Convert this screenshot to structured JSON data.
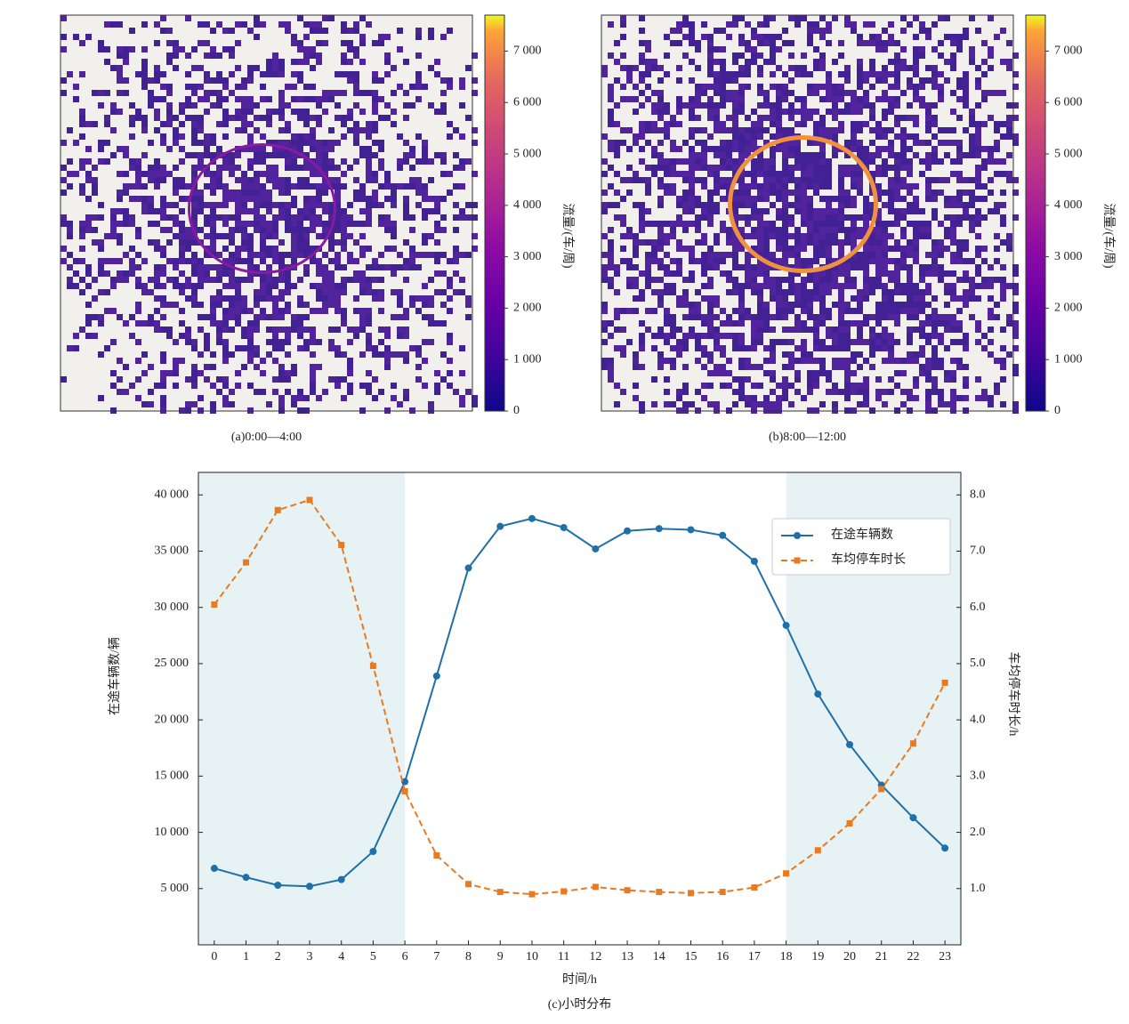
{
  "chart_data": [
    {
      "type": "heatmap",
      "caption": "(a)0:00—4:00",
      "colorbar_label": "流量/(车/周)",
      "colormap": "plasma",
      "clim": [
        0,
        7700
      ],
      "cticks": [
        0,
        {
          "value": 1000,
          "label": "1 000"
        },
        {
          "value": 2000,
          "label": "2 000"
        },
        {
          "value": 3000,
          "label": "3 000"
        },
        {
          "value": 4000,
          "label": "4 000"
        },
        {
          "value": 5000,
          "label": "5 000"
        },
        {
          "value": 6000,
          "label": "6 000"
        },
        {
          "value": 7000,
          "label": "7 000"
        }
      ]
    },
    {
      "type": "heatmap",
      "caption": "(b)8:00—12:00",
      "colorbar_label": "流量/(车/周)",
      "colormap": "plasma",
      "clim": [
        0,
        7700
      ],
      "cticks": [
        0,
        {
          "value": 1000,
          "label": "1 000"
        },
        {
          "value": 2000,
          "label": "2 000"
        },
        {
          "value": 3000,
          "label": "3 000"
        },
        {
          "value": 4000,
          "label": "4 000"
        },
        {
          "value": 5000,
          "label": "5 000"
        },
        {
          "value": 6000,
          "label": "6 000"
        },
        {
          "value": 7000,
          "label": "7 000"
        }
      ]
    },
    {
      "type": "line",
      "caption": "(c)小时分布",
      "xlabel": "时间/h",
      "ylabel": "在途车辆数/辆",
      "y2label": "车均停车时长/h",
      "x": [
        0,
        1,
        2,
        3,
        4,
        5,
        6,
        7,
        8,
        9,
        10,
        11,
        12,
        13,
        14,
        15,
        16,
        17,
        18,
        19,
        20,
        21,
        22,
        23
      ],
      "xlim": [
        -0.5,
        23.5
      ],
      "xticks": [
        0,
        1,
        2,
        3,
        4,
        5,
        6,
        7,
        8,
        9,
        10,
        11,
        12,
        13,
        14,
        15,
        16,
        17,
        18,
        19,
        20,
        21,
        22,
        23
      ],
      "ylim": [
        0,
        42000
      ],
      "yticks": [
        {
          "value": 5000,
          "label": "5 000"
        },
        {
          "value": 10000,
          "label": "10 000"
        },
        {
          "value": 15000,
          "label": "15 000"
        },
        {
          "value": 20000,
          "label": "20 000"
        },
        {
          "value": 25000,
          "label": "25 000"
        },
        {
          "value": 30000,
          "label": "30 000"
        },
        {
          "value": 35000,
          "label": "35 000"
        },
        {
          "value": 40000,
          "label": "40 000"
        }
      ],
      "y2lim": [
        0,
        8.4
      ],
      "y2ticks": [
        {
          "value": 1,
          "label": "1.0"
        },
        {
          "value": 2,
          "label": "2.0"
        },
        {
          "value": 3,
          "label": "3.0"
        },
        {
          "value": 4,
          "label": "4.0"
        },
        {
          "value": 5,
          "label": "5.0"
        },
        {
          "value": 6,
          "label": "6.0"
        },
        {
          "value": 7,
          "label": "7.0"
        },
        {
          "value": 8,
          "label": "8.0"
        }
      ],
      "spans": [
        [
          -0.5,
          6
        ],
        [
          18,
          23.5
        ]
      ],
      "span_color": "#e6f2f3",
      "legend": "upper right",
      "series": [
        {
          "name": "在途车辆数",
          "color": "#1f6fa8",
          "marker": "circle",
          "dashed": false,
          "axis": "y",
          "values": [
            6800,
            6000,
            5300,
            5200,
            5800,
            8300,
            14500,
            23900,
            33500,
            37200,
            37900,
            37100,
            35200,
            36800,
            37000,
            36900,
            36400,
            34100,
            28400,
            22300,
            17800,
            14200,
            11300,
            8600
          ]
        },
        {
          "name": "车均停车时长",
          "color": "#e87b22",
          "marker": "square",
          "dashed": true,
          "axis": "y2",
          "values": [
            6.05,
            6.8,
            7.73,
            7.91,
            7.11,
            4.96,
            2.73,
            1.59,
            1.08,
            0.94,
            0.9,
            0.95,
            1.03,
            0.97,
            0.94,
            0.92,
            0.94,
            1.02,
            1.27,
            1.68,
            2.16,
            2.77,
            3.58,
            4.66
          ]
        }
      ]
    }
  ]
}
